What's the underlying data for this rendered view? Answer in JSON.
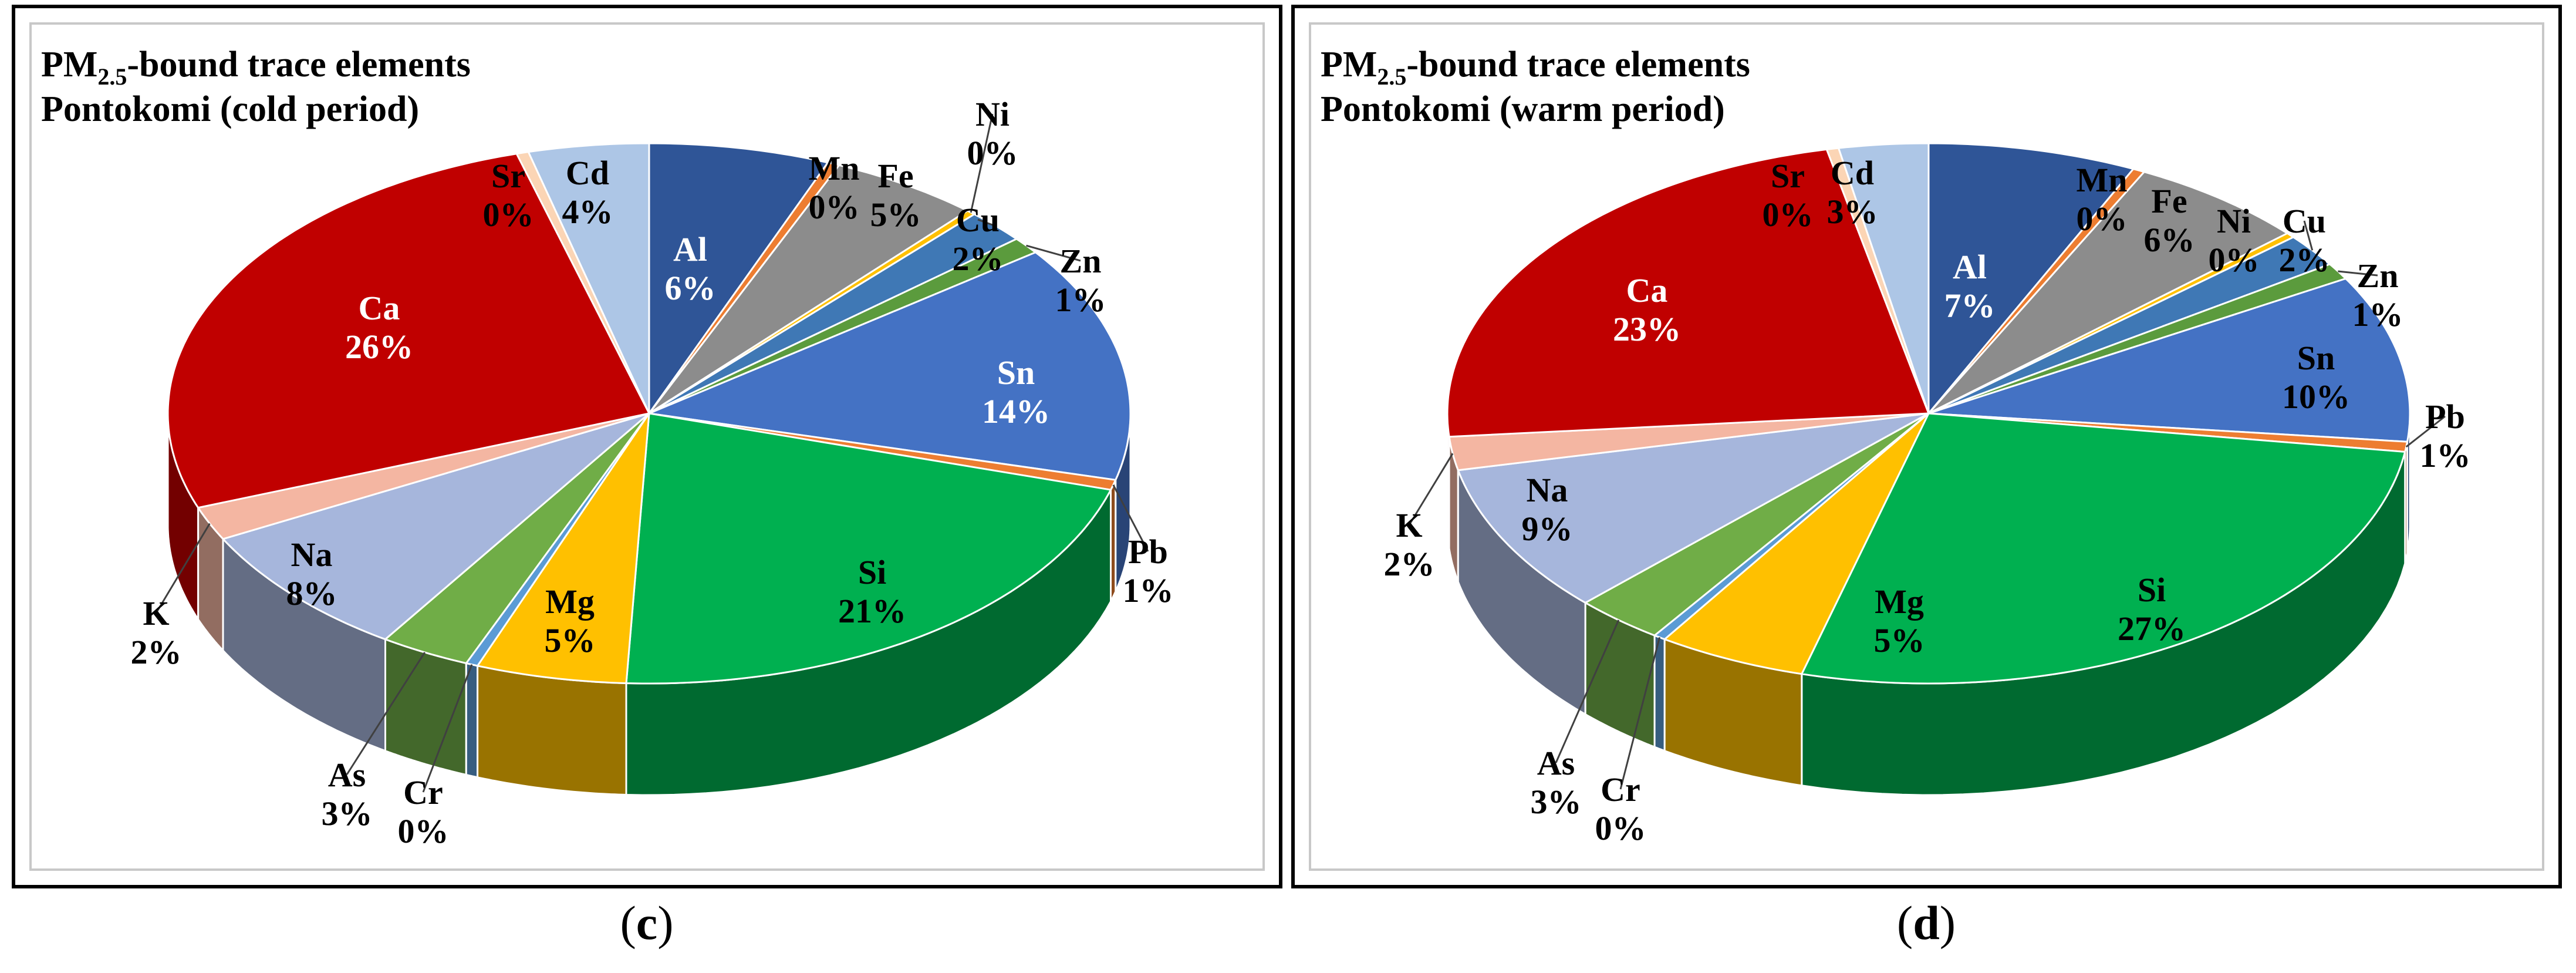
{
  "figure": {
    "captions": [
      "c",
      "d"
    ]
  },
  "chart_data": [
    {
      "type": "pie",
      "style": "3d",
      "title_main": "PM",
      "title_sub": "2.5",
      "title_rest": "-bound trace elements",
      "title_line2": "Pontokomi (cold period)",
      "caption": "c",
      "slices": [
        {
          "label": "Al",
          "value": 6,
          "text": "6%",
          "color": "#2f5597"
        },
        {
          "label": "Mn",
          "value": 0.4,
          "text": "0%",
          "color": "#ed7d31"
        },
        {
          "label": "Fe",
          "value": 5,
          "text": "5%",
          "color": "#8c8c8c"
        },
        {
          "label": "Ni",
          "value": 0.3,
          "text": "0%",
          "color": "#ffc000"
        },
        {
          "label": "Cu",
          "value": 2,
          "text": "2%",
          "color": "#3f78b5"
        },
        {
          "label": "Zn",
          "value": 1,
          "text": "1%",
          "color": "#5b9b3d"
        },
        {
          "label": "Sn",
          "value": 14,
          "text": "14%",
          "color": "#4472c4"
        },
        {
          "label": "Pb",
          "value": 0.6,
          "text": "1%",
          "color": "#ed7d31"
        },
        {
          "label": "Si",
          "value": 21,
          "text": "21%",
          "color": "#00b050"
        },
        {
          "label": "Mg",
          "value": 5,
          "text": "5%",
          "color": "#ffc000"
        },
        {
          "label": "Cr",
          "value": 0.4,
          "text": "0%",
          "color": "#5b9bd5"
        },
        {
          "label": "As",
          "value": 3,
          "text": "3%",
          "color": "#70ad47"
        },
        {
          "label": "Na",
          "value": 8,
          "text": "8%",
          "color": "#a6b6dc"
        },
        {
          "label": "K",
          "value": 2,
          "text": "2%",
          "color": "#f4b6a2"
        },
        {
          "label": "Ca",
          "value": 26,
          "text": "26%",
          "color": "#c00000"
        },
        {
          "label": "Sr",
          "value": 0.4,
          "text": "0%",
          "color": "#fbd5b5"
        },
        {
          "label": "Cd",
          "value": 4,
          "text": "4%",
          "color": "#adc6e6"
        }
      ]
    },
    {
      "type": "pie",
      "style": "3d",
      "title_main": "PM",
      "title_sub": "2.5",
      "title_rest": "-bound trace elements",
      "title_line2": "Pontokomi (warm period)",
      "caption": "d",
      "slices": [
        {
          "label": "Al",
          "value": 7,
          "text": "7%",
          "color": "#2f5597"
        },
        {
          "label": "Mn",
          "value": 0.4,
          "text": "0%",
          "color": "#ed7d31"
        },
        {
          "label": "Fe",
          "value": 6,
          "text": "6%",
          "color": "#8c8c8c"
        },
        {
          "label": "Ni",
          "value": 0.3,
          "text": "0%",
          "color": "#ffc000"
        },
        {
          "label": "Cu",
          "value": 2,
          "text": "2%",
          "color": "#3f78b5"
        },
        {
          "label": "Zn",
          "value": 1,
          "text": "1%",
          "color": "#5b9b3d"
        },
        {
          "label": "Sn",
          "value": 10,
          "text": "10%",
          "color": "#4472c4"
        },
        {
          "label": "Pb",
          "value": 0.6,
          "text": "1%",
          "color": "#ed7d31"
        },
        {
          "label": "Si",
          "value": 27,
          "text": "27%",
          "color": "#00b050"
        },
        {
          "label": "Mg",
          "value": 5,
          "text": "5%",
          "color": "#ffc000"
        },
        {
          "label": "Cr",
          "value": 0.4,
          "text": "0%",
          "color": "#5b9bd5"
        },
        {
          "label": "As",
          "value": 3,
          "text": "3%",
          "color": "#70ad47"
        },
        {
          "label": "Na",
          "value": 9,
          "text": "9%",
          "color": "#a6b6dc"
        },
        {
          "label": "K",
          "value": 2,
          "text": "2%",
          "color": "#f4b6a2"
        },
        {
          "label": "Ca",
          "value": 23,
          "text": "23%",
          "color": "#c00000"
        },
        {
          "label": "Sr",
          "value": 0.4,
          "text": "0%",
          "color": "#fbd5b5"
        },
        {
          "label": "Cd",
          "value": 3,
          "text": "3%",
          "color": "#adc6e6"
        }
      ]
    }
  ]
}
